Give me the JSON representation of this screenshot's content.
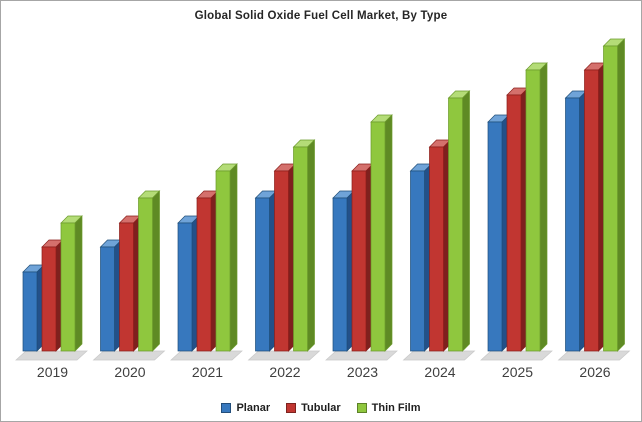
{
  "chart_data": {
    "type": "bar",
    "title": "Global Solid Oxide Fuel Cell Market, By Type",
    "categories": [
      "2019",
      "2020",
      "2021",
      "2022",
      "2023",
      "2024",
      "2025",
      "2026"
    ],
    "series": [
      {
        "name": "Planar",
        "color": "#3778BE",
        "side_color": "#235089",
        "top_color": "#6FA3D8",
        "edge_color": "#1F4E79",
        "values": [
          26,
          34,
          42,
          50,
          50,
          59,
          75,
          83
        ]
      },
      {
        "name": "Tubular",
        "color": "#C13631",
        "side_color": "#7E211E",
        "top_color": "#D4706C",
        "edge_color": "#8B1D1A",
        "values": [
          34,
          42,
          50,
          59,
          59,
          67,
          84,
          92
        ]
      },
      {
        "name": "Thin Film",
        "color": "#8FC73E",
        "side_color": "#5F8A24",
        "top_color": "#B4DC77",
        "edge_color": "#6B9A2B",
        "values": [
          42,
          50,
          59,
          67,
          75,
          83,
          92,
          100
        ]
      }
    ],
    "ylim": [
      0,
      100
    ],
    "xlabel": "",
    "ylabel": "",
    "grid": false,
    "y_axis_visible": false,
    "legend_position": "bottom",
    "bar_style": "3d"
  },
  "style": {
    "background": "#FFFFFF",
    "border_color": "#A6A6A6",
    "shadow_color": "#D9D9D9",
    "shadow_edge_color": "#C9C9C9",
    "axis_label_color": "#3F3F3F",
    "title_color": "#262626",
    "legend_text_color": "#1F1F1F"
  }
}
